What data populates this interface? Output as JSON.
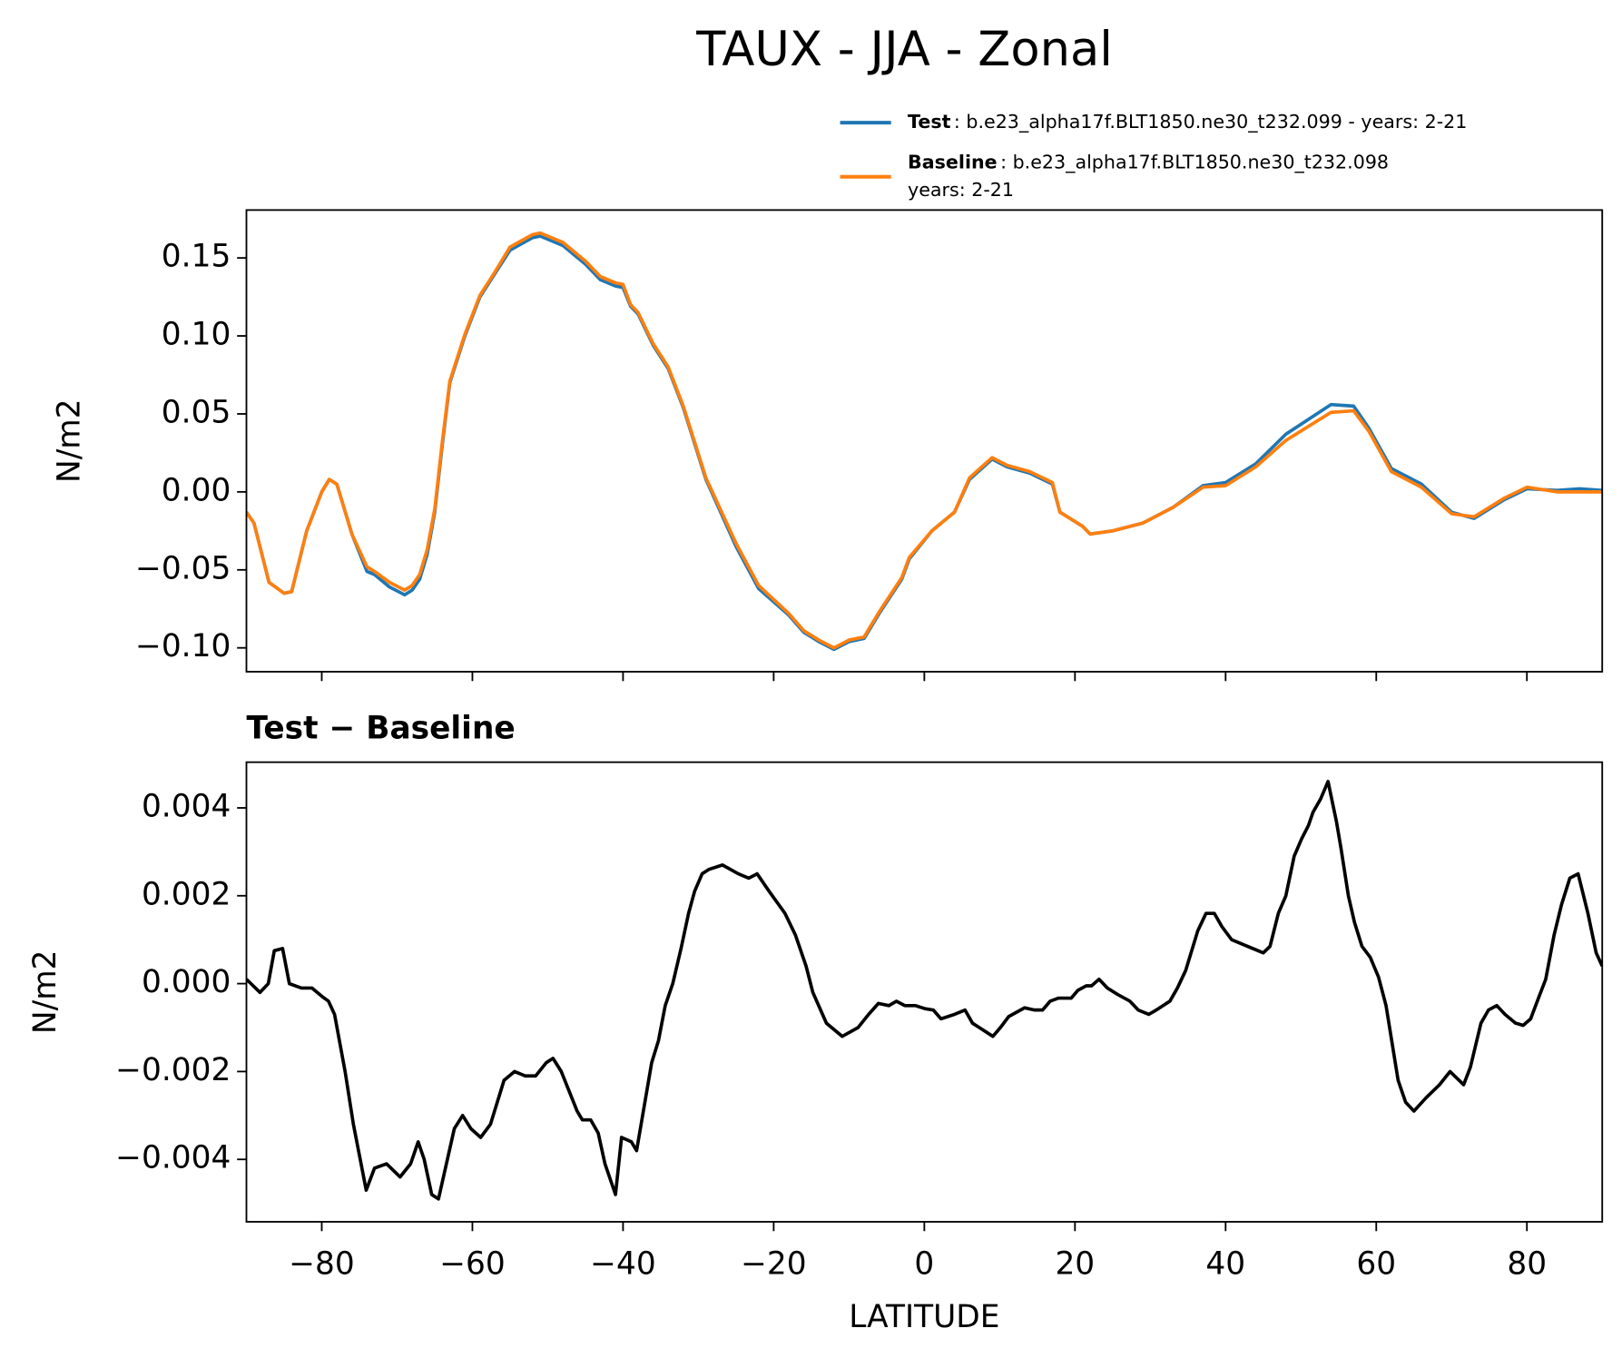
{
  "chart_data": [
    {
      "type": "line",
      "title": "TAUX - JJA - Zonal",
      "ylabel": "N/m2",
      "x": [
        -90,
        -89,
        -87,
        -85,
        -84,
        -82,
        -80,
        -79,
        -78,
        -76,
        -74,
        -73,
        -71,
        -69,
        -68,
        -67,
        -66,
        -65,
        -64,
        -63,
        -61,
        -59,
        -57,
        -55,
        -52,
        -51,
        -48,
        -45,
        -43,
        -41,
        -40,
        -39,
        -38,
        -36,
        -34,
        -32,
        -29,
        -25,
        -22,
        -18,
        -16,
        -14,
        -12,
        -10,
        -8,
        -6,
        -3,
        -2,
        1,
        4,
        6,
        9,
        11,
        14,
        17,
        18,
        21,
        22,
        25,
        29,
        33,
        37,
        40,
        44,
        48,
        54,
        57,
        59,
        62,
        66,
        70,
        73,
        77,
        80,
        84,
        87,
        90
      ],
      "series": [
        {
          "name": "Test",
          "label": [
            ": b.e23_alpha17f.BLT1850.ne30_t232.099 - years: 2-21"
          ],
          "color": "#1f77b4",
          "values": [
            -0.013,
            -0.02,
            -0.058,
            -0.065,
            -0.064,
            -0.025,
            0.0,
            0.008,
            0.005,
            -0.027,
            -0.051,
            -0.053,
            -0.061,
            -0.066,
            -0.063,
            -0.056,
            -0.04,
            -0.013,
            0.03,
            0.07,
            0.1,
            0.125,
            0.14,
            0.155,
            0.163,
            0.164,
            0.158,
            0.146,
            0.136,
            0.132,
            0.131,
            0.119,
            0.114,
            0.094,
            0.079,
            0.054,
            0.008,
            -0.035,
            -0.062,
            -0.079,
            -0.09,
            -0.096,
            -0.101,
            -0.096,
            -0.094,
            -0.078,
            -0.056,
            -0.043,
            -0.025,
            -0.013,
            0.008,
            0.021,
            0.016,
            0.012,
            0.005,
            -0.013,
            -0.022,
            -0.027,
            -0.025,
            -0.02,
            -0.01,
            0.004,
            0.006,
            0.018,
            0.037,
            0.056,
            0.055,
            0.041,
            0.015,
            0.005,
            -0.013,
            -0.017,
            -0.005,
            0.002,
            0.001,
            0.002,
            0.001
          ]
        },
        {
          "name": "Baseline",
          "label": [
            ": b.e23_alpha17f.BLT1850.ne30_t232.098",
            "years: 2-21"
          ],
          "color": "#ff7f0e",
          "values": [
            -0.013,
            -0.02,
            -0.058,
            -0.065,
            -0.064,
            -0.025,
            0.0,
            0.008,
            0.005,
            -0.027,
            -0.048,
            -0.051,
            -0.058,
            -0.063,
            -0.06,
            -0.053,
            -0.037,
            -0.011,
            0.032,
            0.071,
            0.101,
            0.126,
            0.141,
            0.157,
            0.165,
            0.166,
            0.16,
            0.148,
            0.138,
            0.134,
            0.133,
            0.12,
            0.115,
            0.095,
            0.08,
            0.055,
            0.009,
            -0.033,
            -0.06,
            -0.078,
            -0.089,
            -0.095,
            -0.1,
            -0.095,
            -0.093,
            -0.077,
            -0.055,
            -0.042,
            -0.025,
            -0.013,
            0.009,
            0.022,
            0.017,
            0.013,
            0.006,
            -0.013,
            -0.022,
            -0.027,
            -0.025,
            -0.02,
            -0.01,
            0.003,
            0.004,
            0.016,
            0.033,
            0.051,
            0.052,
            0.039,
            0.013,
            0.003,
            -0.014,
            -0.016,
            -0.004,
            0.003,
            0.0,
            0.0,
            0.0
          ]
        }
      ],
      "xlim": [
        -90,
        90
      ],
      "ylim": [
        -0.1153,
        0.1807
      ],
      "yticks": [
        {
          "value": -0.1,
          "label": "−0.10"
        },
        {
          "value": -0.05,
          "label": "−0.05"
        },
        {
          "value": 0,
          "label": "0.00"
        },
        0.05,
        {
          "value": 0.1,
          "label": "0.10"
        },
        0.15
      ]
    },
    {
      "type": "line",
      "title": "Test − Baseline",
      "ylabel": "N/m2",
      "xlabel": "LATITUDE",
      "color": "#000000",
      "x": [
        -90,
        -88.2,
        -87.1,
        -86.3,
        -85.2,
        -84.3,
        -82.7,
        -81.3,
        -79.9,
        -79.1,
        -78.3,
        -76.9,
        -75.8,
        -74.1,
        -73,
        -71.4,
        -69.6,
        -68.2,
        -67.2,
        -66.4,
        -65.4,
        -64.5,
        -62.4,
        -61.3,
        -60.2,
        -58.9,
        -57.6,
        -55.8,
        -54.4,
        -53,
        -51.6,
        -50.2,
        -49.3,
        -48.2,
        -46.1,
        -45.4,
        -44.3,
        -43.3,
        -42.4,
        -41,
        -40.2,
        -38.9,
        -38.2,
        -37.1,
        -36.2,
        -35.3,
        -34.4,
        -33.4,
        -32.3,
        -31.3,
        -30.5,
        -29.5,
        -28.6,
        -26.8,
        -24.7,
        -23.3,
        -22.2,
        -20.6,
        -18.5,
        -17.1,
        -15.7,
        -14.8,
        -13,
        -10.9,
        -8.8,
        -7.4,
        -6.1,
        -4.7,
        -3.7,
        -2.6,
        -1.2,
        0.1,
        1.2,
        2.2,
        4,
        5.4,
        6.4,
        7.3,
        8.2,
        9.1,
        10.1,
        11.2,
        13.3,
        14.6,
        15.7,
        16.7,
        17.8,
        19.5,
        20.4,
        21.5,
        22.2,
        23.2,
        24.3,
        25.7,
        27.3,
        28.4,
        29.8,
        30.8,
        32.6,
        33.6,
        34.7,
        36.3,
        37.4,
        38.5,
        39.5,
        40.8,
        42.2,
        43.6,
        45,
        45.9,
        47,
        48,
        49.1,
        50.1,
        51,
        51.6,
        52.6,
        53.6,
        54.7,
        55.3,
        56.3,
        57.1,
        58.1,
        59.2,
        60.3,
        61.3,
        62.9,
        63.9,
        65,
        66.6,
        68.4,
        69.8,
        71.6,
        72.5,
        73.9,
        74.9,
        76,
        77.1,
        78.5,
        79.5,
        80.5,
        81.6,
        82.5,
        83.6,
        84.6,
        85.7,
        86.8,
        88.1,
        89.2,
        90
      ],
      "values": [
        0.0001,
        -0.0002,
        0,
        0.00075,
        0.0008,
        0,
        -0.0001,
        -0.0001,
        -0.0003,
        -0.0004,
        -0.0007,
        -0.002,
        -0.0032,
        -0.0047,
        -0.0042,
        -0.0041,
        -0.0044,
        -0.0041,
        -0.0036,
        -0.004,
        -0.0048,
        -0.0049,
        -0.0033,
        -0.003,
        -0.0033,
        -0.0035,
        -0.0032,
        -0.0022,
        -0.002,
        -0.0021,
        -0.0021,
        -0.0018,
        -0.0017,
        -0.002,
        -0.0029,
        -0.0031,
        -0.0031,
        -0.0034,
        -0.0041,
        -0.0048,
        -0.0035,
        -0.0036,
        -0.0038,
        -0.0027,
        -0.0018,
        -0.0013,
        -0.0005,
        0,
        0.0008,
        0.0016,
        0.0021,
        0.0025,
        0.0026,
        0.0027,
        0.0025,
        0.0024,
        0.0025,
        0.0021,
        0.0016,
        0.0011,
        0.0004,
        -0.0002,
        -0.0009,
        -0.0012,
        -0.001,
        -0.0007,
        -0.00045,
        -0.0005,
        -0.0004,
        -0.0005,
        -0.0005,
        -0.00057,
        -0.0006,
        -0.0008,
        -0.0007,
        -0.0006,
        -0.0009,
        -0.001,
        -0.0011,
        -0.0012,
        -0.001,
        -0.00075,
        -0.00055,
        -0.0006,
        -0.0006,
        -0.0004,
        -0.00033,
        -0.00033,
        -0.00015,
        -5e-05,
        -5e-05,
        0.0001,
        -0.0001,
        -0.00025,
        -0.0004,
        -0.0006,
        -0.0007,
        -0.0006,
        -0.0004,
        -0.0001,
        0.0003,
        0.0012,
        0.0016,
        0.0016,
        0.0013,
        0.001,
        0.0009,
        0.0008,
        0.0007,
        0.00085,
        0.0016,
        0.002,
        0.0029,
        0.0033,
        0.0036,
        0.0039,
        0.0042,
        0.0046,
        0.0037,
        0.0031,
        0.002,
        0.0014,
        0.00085,
        0.0006,
        0.00015,
        -0.0005,
        -0.0022,
        -0.0027,
        -0.0029,
        -0.0026,
        -0.0023,
        -0.002,
        -0.0023,
        -0.0019,
        -0.0009,
        -0.0006,
        -0.0005,
        -0.0007,
        -0.0009,
        -0.00095,
        -0.0008,
        -0.0003,
        0.0001,
        0.0011,
        0.0018,
        0.0024,
        0.0025,
        0.0016,
        0.0007,
        0.0004
      ],
      "xlim": [
        -90,
        90
      ],
      "ylim": [
        -0.00542,
        0.00504
      ],
      "yticks": [
        {
          "value": -0.004,
          "label": "−0.004"
        },
        {
          "value": -0.002,
          "label": "−0.002"
        },
        {
          "value": 0,
          "label": "0.000"
        },
        {
          "value": 0.002,
          "label": "0.002"
        },
        0.004
      ],
      "xticks": [
        {
          "value": -80,
          "label": "−80"
        },
        {
          "value": -60,
          "label": "−60"
        },
        {
          "value": -40,
          "label": "−40"
        },
        {
          "value": -20,
          "label": "−20"
        },
        0,
        20,
        40,
        60,
        80
      ]
    }
  ]
}
